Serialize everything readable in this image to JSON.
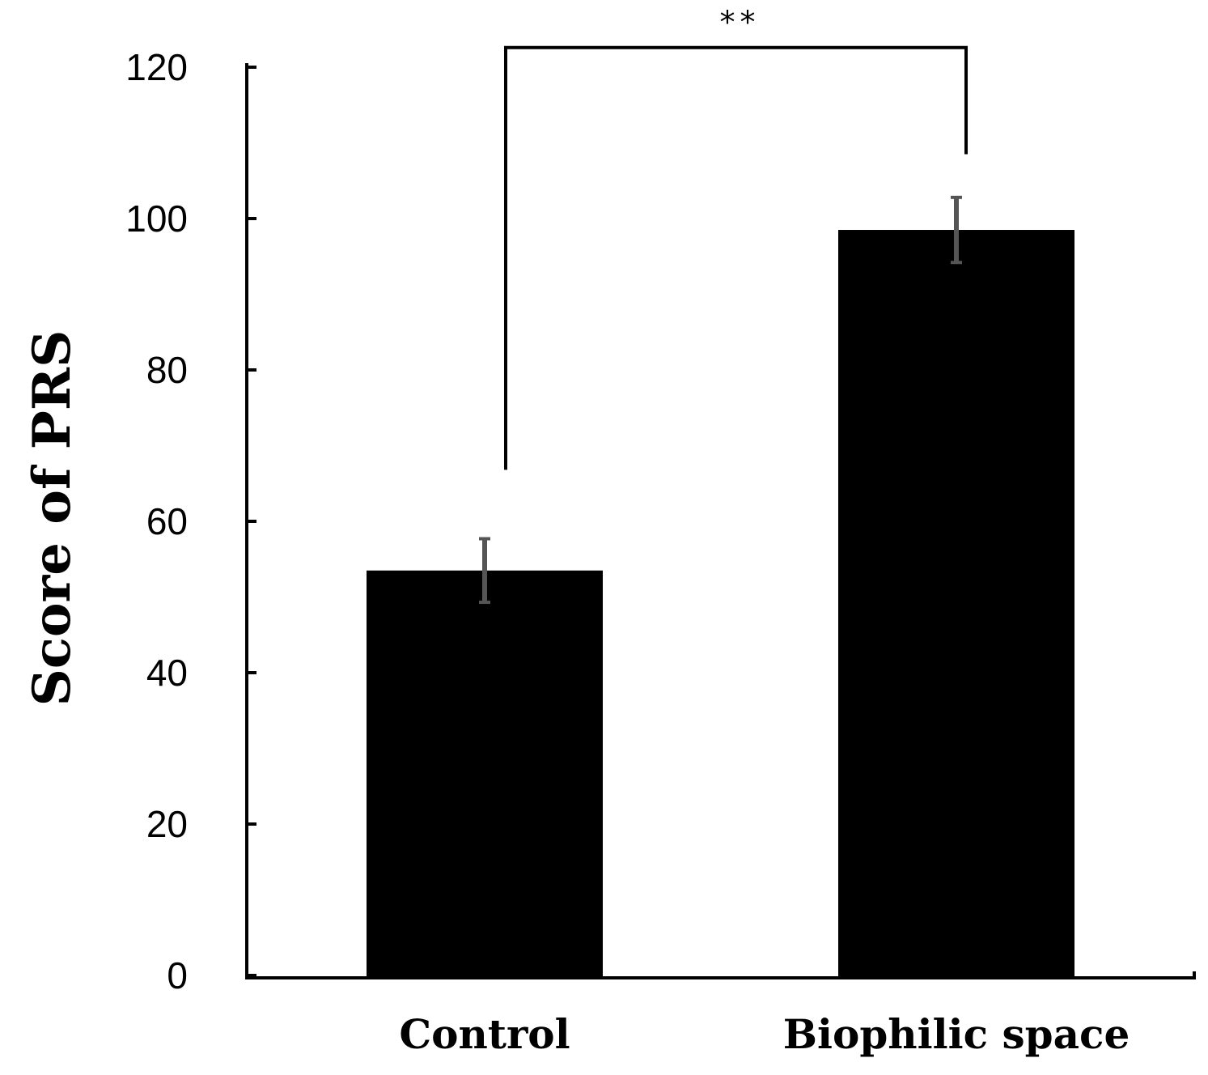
{
  "chart_data": {
    "type": "bar",
    "title": "",
    "xlabel": "",
    "ylabel": "Score of PRS",
    "categories": [
      "Control",
      "Biophilic space"
    ],
    "values": [
      53.5,
      98.5
    ],
    "error": [
      4.2,
      4.3
    ],
    "ylim": [
      0,
      120
    ],
    "yticks": [
      0,
      20,
      40,
      60,
      80,
      100,
      120
    ],
    "yticklabels": [
      "0",
      "20",
      "40",
      "60",
      "80",
      "100",
      "120"
    ],
    "grid": false,
    "legend": "none",
    "significance": {
      "label": "**",
      "between": [
        "Control",
        "Biophilic space"
      ]
    }
  },
  "colors": {
    "bar": "#000000",
    "error_bar": "#555555",
    "axis": "#000000",
    "background": "#ffffff"
  }
}
